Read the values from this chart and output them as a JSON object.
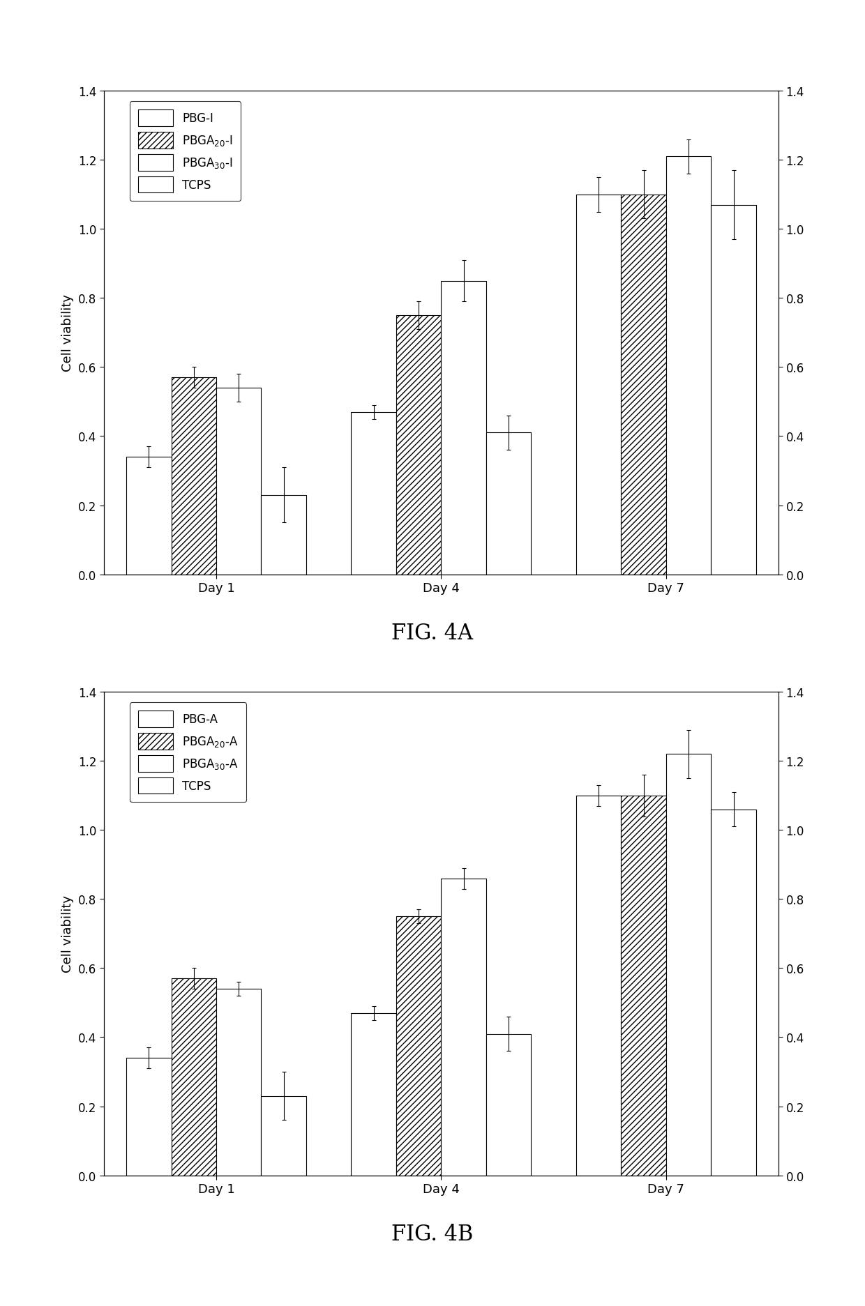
{
  "fig4a": {
    "title": "FIG. 4A",
    "groups": [
      "Day 1",
      "Day 4",
      "Day 7"
    ],
    "series_a": [
      "PBG-I",
      "PBGA$_{20}$-I",
      "PBGA$_{30}$-I",
      "TCPS"
    ],
    "values": [
      [
        0.34,
        0.57,
        0.54,
        0.23
      ],
      [
        0.47,
        0.75,
        0.85,
        0.41
      ],
      [
        1.1,
        1.1,
        1.21,
        1.07
      ]
    ],
    "errors": [
      [
        0.03,
        0.03,
        0.04,
        0.08
      ],
      [
        0.02,
        0.04,
        0.06,
        0.05
      ],
      [
        0.05,
        0.07,
        0.05,
        0.1
      ]
    ]
  },
  "fig4b": {
    "title": "FIG. 4B",
    "series_b": [
      "PBG-A",
      "PBGA$_{20}$-A",
      "PBGA$_{30}$-A",
      "TCPS"
    ],
    "values": [
      [
        0.34,
        0.57,
        0.54,
        0.23
      ],
      [
        0.47,
        0.75,
        0.86,
        0.41
      ],
      [
        1.1,
        1.1,
        1.22,
        1.06
      ]
    ],
    "errors": [
      [
        0.03,
        0.03,
        0.02,
        0.07
      ],
      [
        0.02,
        0.02,
        0.03,
        0.05
      ],
      [
        0.03,
        0.06,
        0.07,
        0.05
      ]
    ]
  },
  "groups": [
    "Day 1",
    "Day 4",
    "Day 7"
  ],
  "ylim": [
    0.0,
    1.4
  ],
  "yticks": [
    0.0,
    0.2,
    0.4,
    0.6,
    0.8,
    1.0,
    1.2,
    1.4
  ],
  "ylabel": "Cell viability",
  "bar_width": 0.2,
  "hatches": [
    "",
    "////",
    "",
    "===="
  ],
  "facecolors": [
    "white",
    "white",
    "white",
    "white"
  ],
  "background_color": "#ffffff",
  "font_size": 13,
  "tick_font_size": 12,
  "legend_font_size": 12,
  "title_font_size": 22
}
